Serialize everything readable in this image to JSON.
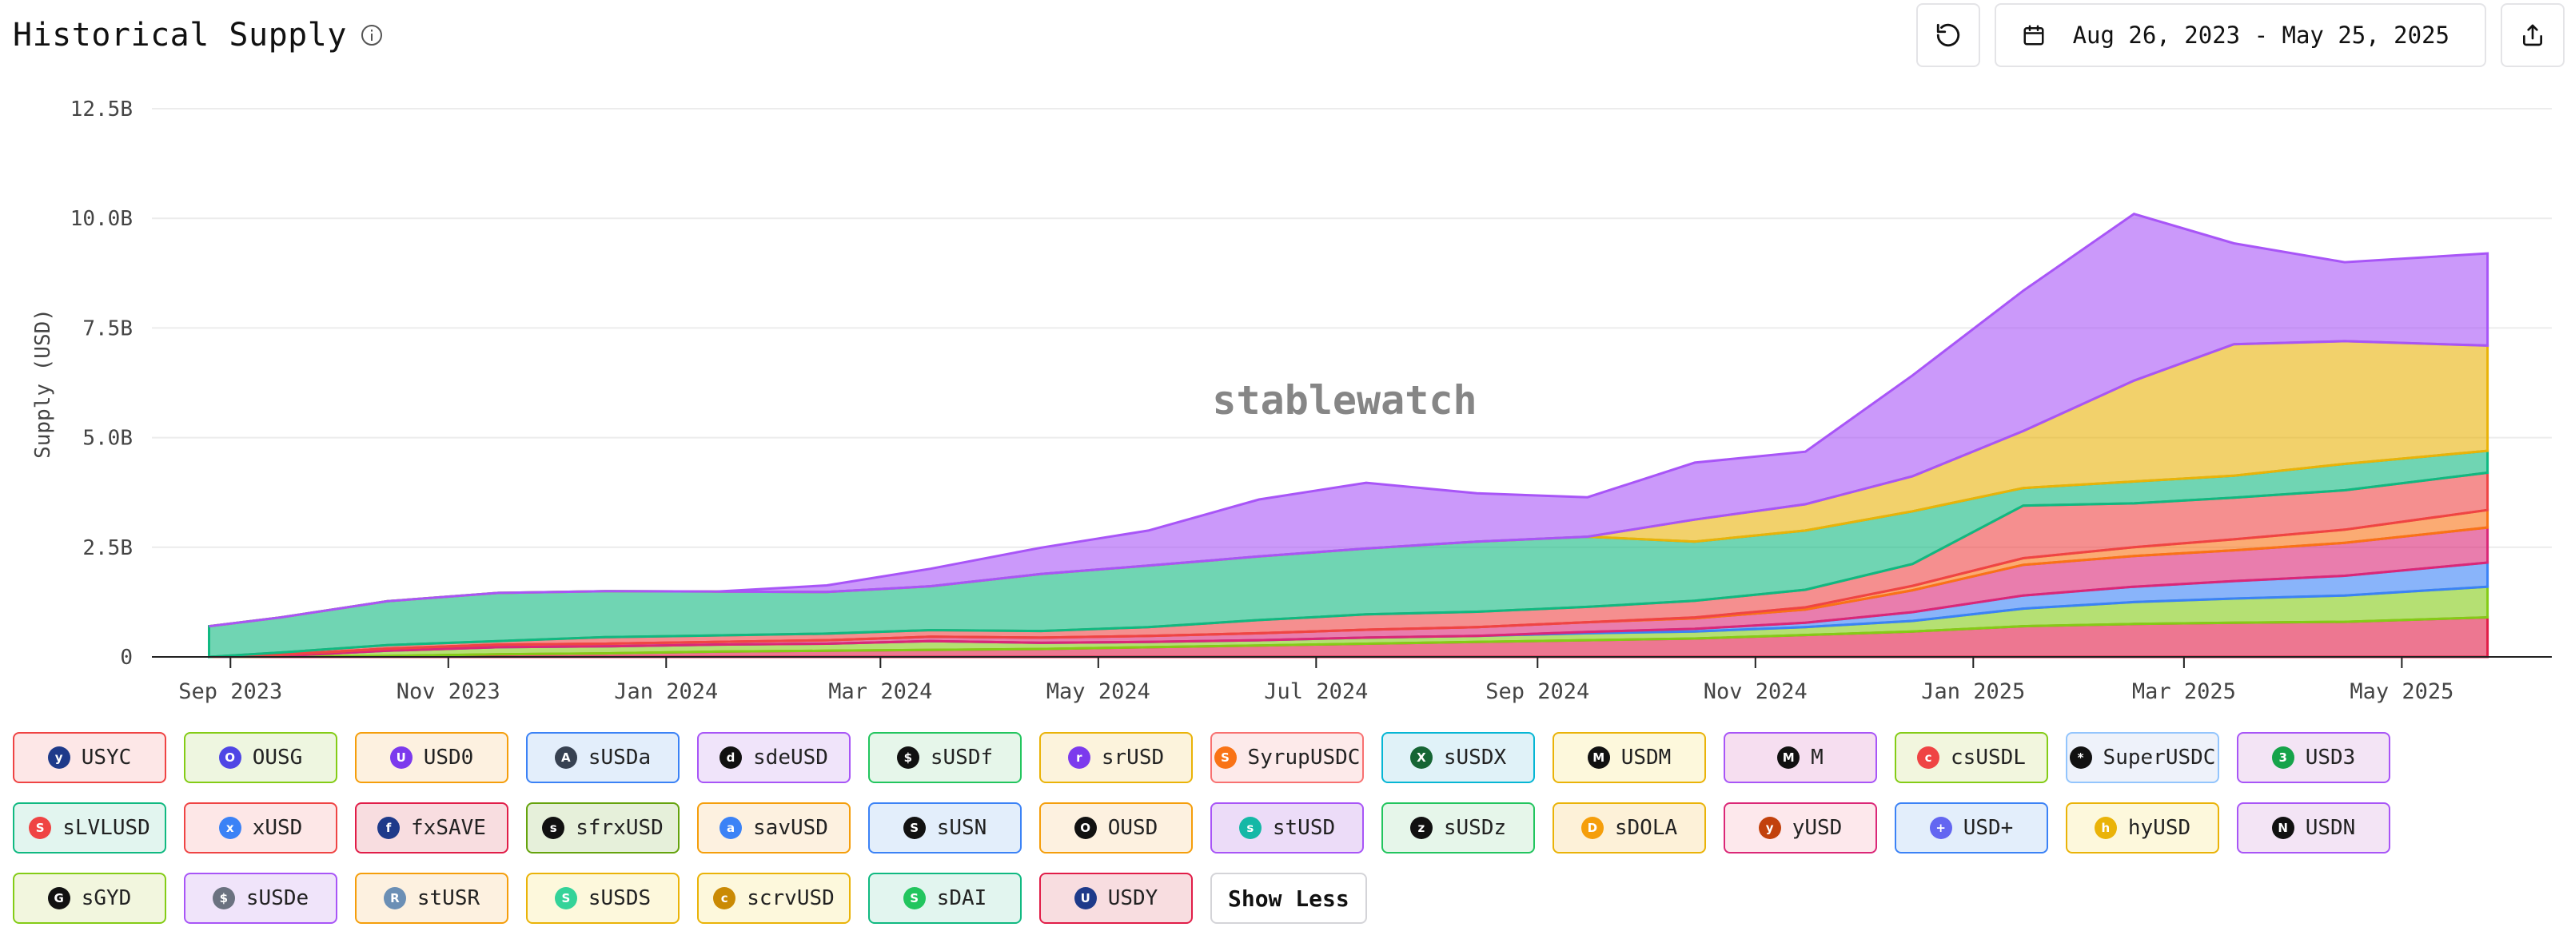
{
  "header": {
    "title": "Historical Supply",
    "date_range": "Aug 26, 2023 - May 25, 2025",
    "info_icon": "info-icon",
    "reset_icon": "reset-icon",
    "calendar_icon": "calendar-icon",
    "share_icon": "share-icon"
  },
  "watermark": "stablewatch",
  "chart_data": {
    "type": "area",
    "stacked": true,
    "ylabel": "Supply (USD)",
    "xlabel": "",
    "ylim": [
      0,
      12500000000
    ],
    "yticks": [
      {
        "value": 0,
        "label": "0"
      },
      {
        "value": 2500000000,
        "label": "2.5B"
      },
      {
        "value": 5000000000,
        "label": "5.0B"
      },
      {
        "value": 7500000000,
        "label": "7.5B"
      },
      {
        "value": 10000000000,
        "label": "10.0B"
      },
      {
        "value": 12500000000,
        "label": "12.5B"
      }
    ],
    "xticks": [
      "Sep 2023",
      "Nov 2023",
      "Jan 2024",
      "Mar 2024",
      "May 2024",
      "Jul 2024",
      "Sep 2024",
      "Nov 2024",
      "Jan 2025",
      "Mar 2025",
      "May 2025"
    ],
    "x": [
      "2023-08-26",
      "2023-09-15",
      "2023-10-15",
      "2023-11-15",
      "2023-12-15",
      "2024-01-15",
      "2024-02-15",
      "2024-03-15",
      "2024-04-15",
      "2024-05-15",
      "2024-06-15",
      "2024-07-15",
      "2024-08-15",
      "2024-09-15",
      "2024-10-15",
      "2024-11-15",
      "2024-12-15",
      "2025-01-15",
      "2025-02-15",
      "2025-03-15",
      "2025-04-15",
      "2025-05-25"
    ],
    "grid": true,
    "series": [
      {
        "name": "USDY",
        "color": "#e11d48",
        "values": [
          0,
          0.01,
          0.02,
          0.06,
          0.08,
          0.12,
          0.14,
          0.16,
          0.18,
          0.22,
          0.26,
          0.3,
          0.34,
          0.38,
          0.42,
          0.5,
          0.58,
          0.7,
          0.75,
          0.78,
          0.8,
          0.9
        ]
      },
      {
        "name": "sDAI",
        "color": "#84cc16",
        "values": [
          0,
          0.01,
          0.12,
          0.16,
          0.16,
          0.16,
          0.16,
          0.2,
          0.14,
          0.12,
          0.12,
          0.14,
          0.14,
          0.16,
          0.16,
          0.18,
          0.24,
          0.4,
          0.5,
          0.55,
          0.6,
          0.7
        ]
      },
      {
        "name": "sUSDS",
        "color": "#3b82f6",
        "values": [
          0,
          0,
          0,
          0,
          0,
          0,
          0,
          0,
          0,
          0,
          0,
          0,
          0,
          0.03,
          0.06,
          0.1,
          0.2,
          0.3,
          0.35,
          0.4,
          0.45,
          0.55
        ]
      },
      {
        "name": "sUSDe",
        "color": "#db2777",
        "values": [
          0,
          0.03,
          0.05,
          0.06,
          0.06,
          0.06,
          0.08,
          0.1,
          0.12,
          0.14,
          0.16,
          0.18,
          0.2,
          0.22,
          0.24,
          0.3,
          0.5,
          0.7,
          0.7,
          0.7,
          0.75,
          0.8
        ]
      },
      {
        "name": "USD0",
        "color": "#f97316",
        "values": [
          0,
          0,
          0,
          0,
          0,
          0,
          0,
          0,
          0,
          0,
          0,
          0,
          0,
          0,
          0.02,
          0.05,
          0.1,
          0.15,
          0.2,
          0.25,
          0.3,
          0.4
        ]
      },
      {
        "name": "stUSD",
        "color": "#ef4444",
        "values": [
          0,
          0.05,
          0.08,
          0.08,
          0.15,
          0.15,
          0.15,
          0.15,
          0.15,
          0.2,
          0.3,
          0.35,
          0.35,
          0.35,
          0.38,
          0.4,
          0.5,
          1.2,
          1.0,
          0.95,
          0.9,
          0.85
        ]
      },
      {
        "name": "USYC",
        "color": "#10b981",
        "values": [
          0.7,
          0.8,
          1.0,
          1.1,
          1.05,
          1.0,
          0.95,
          1.0,
          1.3,
          1.4,
          1.45,
          1.5,
          1.6,
          1.6,
          1.35,
          1.35,
          1.2,
          0.4,
          0.5,
          0.5,
          0.6,
          0.5
        ]
      },
      {
        "name": "USDM",
        "color": "#eab308",
        "values": [
          0,
          0,
          0,
          0,
          0,
          0,
          0,
          0,
          0,
          0,
          0,
          0,
          0,
          0,
          0.5,
          0.6,
          0.8,
          1.3,
          2.3,
          3.0,
          2.8,
          2.4
        ]
      },
      {
        "name": "M",
        "color": "#a855f7",
        "values": [
          0,
          0,
          0,
          0,
          0,
          0,
          0.15,
          0.4,
          0.6,
          0.8,
          1.3,
          1.5,
          1.1,
          0.9,
          1.3,
          1.2,
          2.3,
          3.2,
          3.8,
          2.3,
          1.8,
          2.1
        ]
      }
    ]
  },
  "legend": {
    "show_less": "Show Less",
    "items": [
      {
        "label": "USYC",
        "color": "#ef4444",
        "bg": "#fde7e7",
        "icon_bg": "#1e3a8a",
        "glyph": "y"
      },
      {
        "label": "OUSG",
        "color": "#84cc16",
        "bg": "#eef6e0",
        "icon_bg": "#4f46e5",
        "glyph": "O"
      },
      {
        "label": "USD0",
        "color": "#f59e0b",
        "bg": "#fdf1e0",
        "icon_bg": "#7c3aed",
        "glyph": "U"
      },
      {
        "label": "sUSDa",
        "color": "#3b82f6",
        "bg": "#e3eefb",
        "icon_bg": "#374151",
        "glyph": "A"
      },
      {
        "label": "sdeUSD",
        "color": "#a855f7",
        "bg": "#f0e4fa",
        "icon_bg": "#111111",
        "glyph": "d"
      },
      {
        "label": "sUSDf",
        "color": "#22c55e",
        "bg": "#e6f6ea",
        "icon_bg": "#111111",
        "glyph": "$"
      },
      {
        "label": "srUSD",
        "color": "#eab308",
        "bg": "#fcf3dc",
        "icon_bg": "#7c3aed",
        "glyph": "r"
      },
      {
        "label": "SyrupUSDC",
        "color": "#f87171",
        "bg": "#fdeaea",
        "icon_bg": "#f97316",
        "glyph": "S"
      },
      {
        "label": "sUSDX",
        "color": "#06b6d4",
        "bg": "#e0f2f8",
        "icon_bg": "#166534",
        "glyph": "X"
      },
      {
        "label": "USDM",
        "color": "#eab308",
        "bg": "#fdf8dc",
        "icon_bg": "#111111",
        "glyph": "M"
      },
      {
        "label": "M",
        "color": "#a855f7",
        "bg": "#f6def0",
        "icon_bg": "#111111",
        "glyph": "M"
      },
      {
        "label": "csUSDL",
        "color": "#84cc16",
        "bg": "#f2f6de",
        "icon_bg": "#ef4444",
        "glyph": "c"
      },
      {
        "label": "SuperUSDC",
        "color": "#93c5fd",
        "bg": "#eef2fa",
        "icon_bg": "#111111",
        "glyph": "*"
      },
      {
        "label": "USD3",
        "color": "#a855f7",
        "bg": "#f3e4f5",
        "icon_bg": "#16a34a",
        "glyph": "3"
      },
      {
        "label": "sLVLUSD",
        "color": "#10b981",
        "bg": "#e2f5ef",
        "icon_bg": "#ef4444",
        "glyph": "S"
      },
      {
        "label": "xUSD",
        "color": "#ef4444",
        "bg": "#fde7e7",
        "icon_bg": "#3b82f6",
        "glyph": "x"
      },
      {
        "label": "fxSAVE",
        "color": "#e11d48",
        "bg": "#f8dde0",
        "icon_bg": "#1e3a8a",
        "glyph": "f"
      },
      {
        "label": "sfrxUSD",
        "color": "#65a30d",
        "bg": "#e6f0da",
        "icon_bg": "#111111",
        "glyph": "s"
      },
      {
        "label": "savUSD",
        "color": "#f59e0b",
        "bg": "#fdf1e0",
        "icon_bg": "#3b82f6",
        "glyph": "a"
      },
      {
        "label": "sUSN",
        "color": "#3b82f6",
        "bg": "#e3eefb",
        "icon_bg": "#111111",
        "glyph": "S"
      },
      {
        "label": "OUSD",
        "color": "#f59e0b",
        "bg": "#fdf1e0",
        "icon_bg": "#111111",
        "glyph": "O"
      },
      {
        "label": "stUSD",
        "color": "#a855f7",
        "bg": "#ecdcf8",
        "icon_bg": "#14b8a6",
        "glyph": "s"
      },
      {
        "label": "sUSDz",
        "color": "#22c55e",
        "bg": "#e6f6ea",
        "icon_bg": "#111111",
        "glyph": "z"
      },
      {
        "label": "sDOLA",
        "color": "#eab308",
        "bg": "#fdf1d8",
        "icon_bg": "#f59e0b",
        "glyph": "D"
      },
      {
        "label": "yUSD",
        "color": "#db2777",
        "bg": "#fde8ec",
        "icon_bg": "#c2410c",
        "glyph": "y"
      },
      {
        "label": "USD+",
        "color": "#3b82f6",
        "bg": "#e3eefb",
        "icon_bg": "#6366f1",
        "glyph": "+"
      },
      {
        "label": "hyUSD",
        "color": "#eab308",
        "bg": "#fdf8dc",
        "icon_bg": "#eab308",
        "glyph": "h"
      },
      {
        "label": "USDN",
        "color": "#a855f7",
        "bg": "#f3e4f5",
        "icon_bg": "#111111",
        "glyph": "N"
      },
      {
        "label": "sGYD",
        "color": "#84cc16",
        "bg": "#f2f6de",
        "icon_bg": "#111111",
        "glyph": "G"
      },
      {
        "label": "sUSDe",
        "color": "#a855f7",
        "bg": "#f0e4fa",
        "icon_bg": "#6b7280",
        "glyph": "$"
      },
      {
        "label": "stUSR",
        "color": "#f59e0b",
        "bg": "#fdf1e0",
        "icon_bg": "#6b8fb5",
        "glyph": "R"
      },
      {
        "label": "sUSDS",
        "color": "#eab308",
        "bg": "#fdf8dc",
        "icon_bg": "#34d399",
        "glyph": "S"
      },
      {
        "label": "scrvUSD",
        "color": "#eab308",
        "bg": "#fdf8dc",
        "icon_bg": "#ca8a04",
        "glyph": "c"
      },
      {
        "label": "sDAI",
        "color": "#10b981",
        "bg": "#e2f5ef",
        "icon_bg": "#22c55e",
        "glyph": "S"
      },
      {
        "label": "USDY",
        "color": "#e11d48",
        "bg": "#f8dde0",
        "icon_bg": "#1e3a8a",
        "glyph": "U"
      }
    ]
  }
}
